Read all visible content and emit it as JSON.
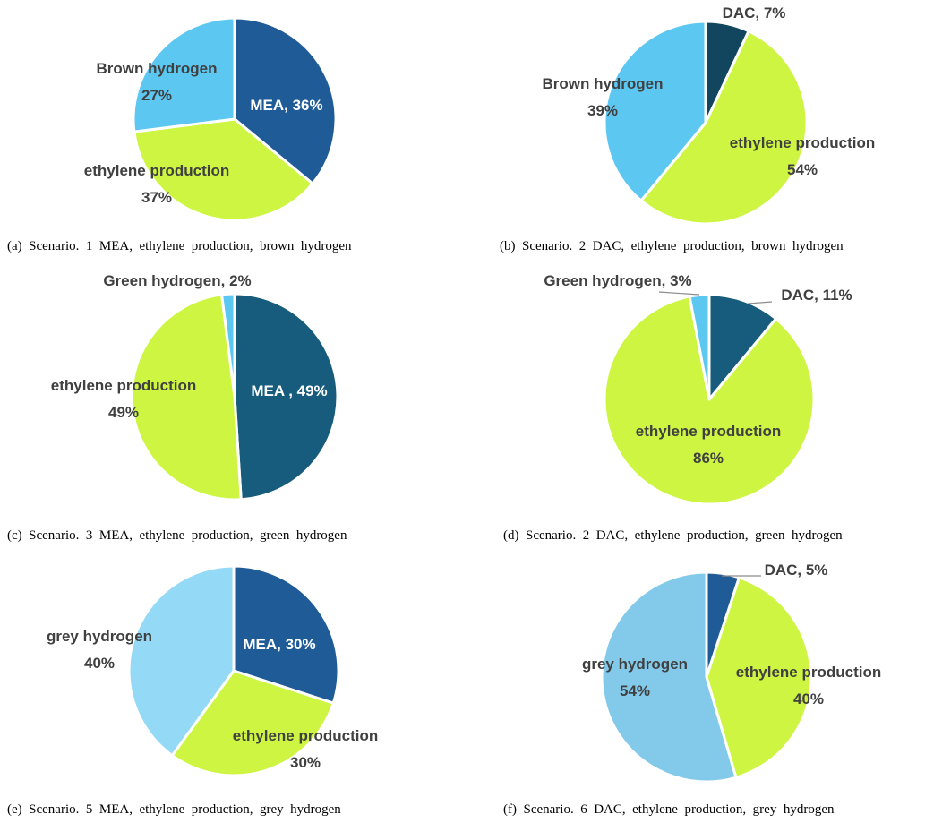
{
  "chart_data": [
    {
      "type": "pie",
      "panel": "a",
      "caption": "(a)  Scenario.  1  MEA,  ethylene  production,  brown  hydrogen",
      "slices": [
        {
          "name": "MEA",
          "value": 36,
          "color": "#1f5b97",
          "label_lines": [
            "MEA, 36%"
          ]
        },
        {
          "name": "ethylene production",
          "value": 37,
          "color": "#cdf542",
          "label_lines": [
            "ethylene production",
            "37%"
          ]
        },
        {
          "name": "Brown hydrogen",
          "value": 27,
          "color": "#5cc8f2",
          "label_lines": [
            "Brown hydrogen",
            "27%"
          ]
        }
      ]
    },
    {
      "type": "pie",
      "panel": "b",
      "caption": "(b)  Scenario.  2  DAC,  ethylene  production,  brown  hydrogen",
      "slices": [
        {
          "name": "DAC",
          "value": 7,
          "color": "#12465f",
          "label_lines": [
            "DAC, 7%"
          ]
        },
        {
          "name": "ethylene production",
          "value": 54,
          "color": "#cdf542",
          "label_lines": [
            "ethylene production",
            "54%"
          ]
        },
        {
          "name": "Brown hydrogen",
          "value": 39,
          "color": "#5cc8f2",
          "label_lines": [
            "Brown hydrogen",
            "39%"
          ]
        }
      ]
    },
    {
      "type": "pie",
      "panel": "c",
      "caption": "(c)  Scenario.  3  MEA,  ethylene  production,  green  hydrogen",
      "slices": [
        {
          "name": "MEA",
          "value": 49,
          "color": "#175c7c",
          "label_lines": [
            "MEA , 49%"
          ]
        },
        {
          "name": "ethylene production",
          "value": 49,
          "color": "#cdf542",
          "label_lines": [
            "ethylene production",
            "49%"
          ]
        },
        {
          "name": "Green hydrogen",
          "value": 2,
          "color": "#5cc8f2",
          "label_lines": [
            "Green hydrogen, 2%"
          ]
        }
      ]
    },
    {
      "type": "pie",
      "panel": "d",
      "caption": "(d)  Scenario.  2  DAC,  ethylene  production,  green  hydrogen",
      "slices": [
        {
          "name": "DAC",
          "value": 11,
          "color": "#175c7c",
          "label_lines": [
            "DAC, 11%"
          ]
        },
        {
          "name": "ethylene production",
          "value": 86,
          "color": "#cdf542",
          "label_lines": [
            "ethylene production",
            "86%"
          ]
        },
        {
          "name": "Green hydrogen",
          "value": 3,
          "color": "#5cc8f2",
          "label_lines": [
            "Green hydrogen, 3%"
          ]
        }
      ]
    },
    {
      "type": "pie",
      "panel": "e",
      "caption": "(e)  Scenario.  5  MEA,  ethylene  production,  grey  hydrogen",
      "slices": [
        {
          "name": "MEA",
          "value": 30,
          "color": "#1f5b97",
          "label_lines": [
            "MEA, 30%"
          ]
        },
        {
          "name": "ethylene production",
          "value": 30,
          "color": "#cdf542",
          "label_lines": [
            "ethylene production",
            "30%"
          ]
        },
        {
          "name": "grey hydrogen",
          "value": 40,
          "color": "#94d9f5",
          "label_lines": [
            "grey hydrogen",
            "40%"
          ]
        }
      ]
    },
    {
      "type": "pie",
      "panel": "f",
      "caption": "(f)  Scenario.  6  DAC,  ethylene  production,  grey  hydrogen",
      "slices": [
        {
          "name": "DAC",
          "value": 5,
          "color": "#1f5b97",
          "label_lines": [
            "DAC, 5%"
          ]
        },
        {
          "name": "ethylene production",
          "value": 40,
          "color": "#cdf542",
          "label_lines": [
            "ethylene production",
            "40%"
          ]
        },
        {
          "name": "grey hydrogen",
          "value": 54,
          "color": "#82c9ea",
          "label_lines": [
            "grey hydrogen",
            "54%"
          ]
        }
      ]
    }
  ]
}
